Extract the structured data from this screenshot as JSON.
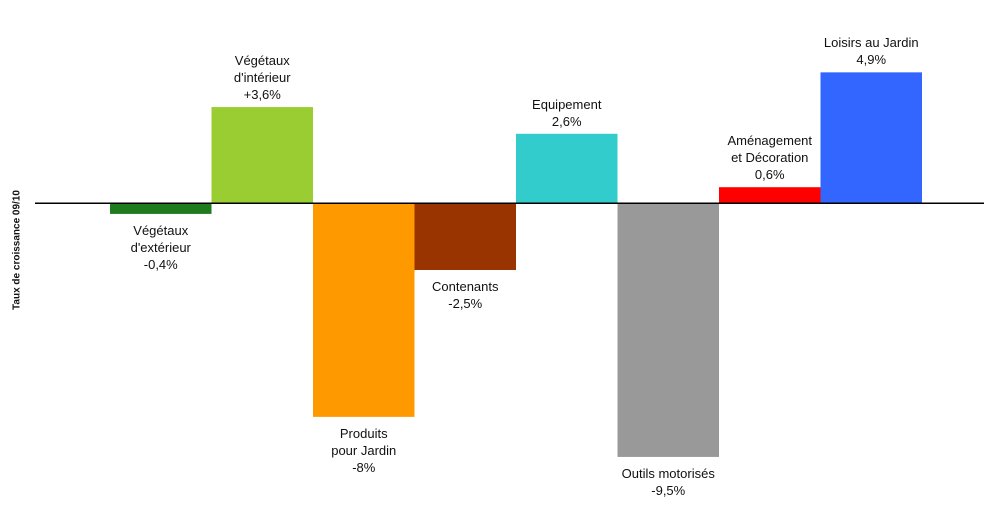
{
  "chart_data": {
    "type": "bar",
    "y_label": "Taux de croissance 09/10",
    "categories": [
      "Végétaux\nd'extérieur",
      "Végétaux\nd'intérieur",
      "Produits\npour Jardin",
      "Contenants",
      "Equipement",
      "Outils motorisés",
      "Aménagement\net Décoration",
      "Loisirs au Jardin"
    ],
    "values": [
      -0.4,
      3.6,
      -8,
      -2.5,
      2.6,
      -9.5,
      0.6,
      4.9
    ],
    "value_labels": [
      "-0,4%",
      "+3,6%",
      "-8%",
      "-2,5%",
      "2,6%",
      "-9,5%",
      "0,6%",
      "4,9%"
    ],
    "colors": [
      "#1e7b1e",
      "#9acd32",
      "#ff9900",
      "#993300",
      "#33cccc",
      "#999999",
      "#ff0000",
      "#3366ff"
    ],
    "ylim": [
      -11,
      5.4
    ]
  }
}
